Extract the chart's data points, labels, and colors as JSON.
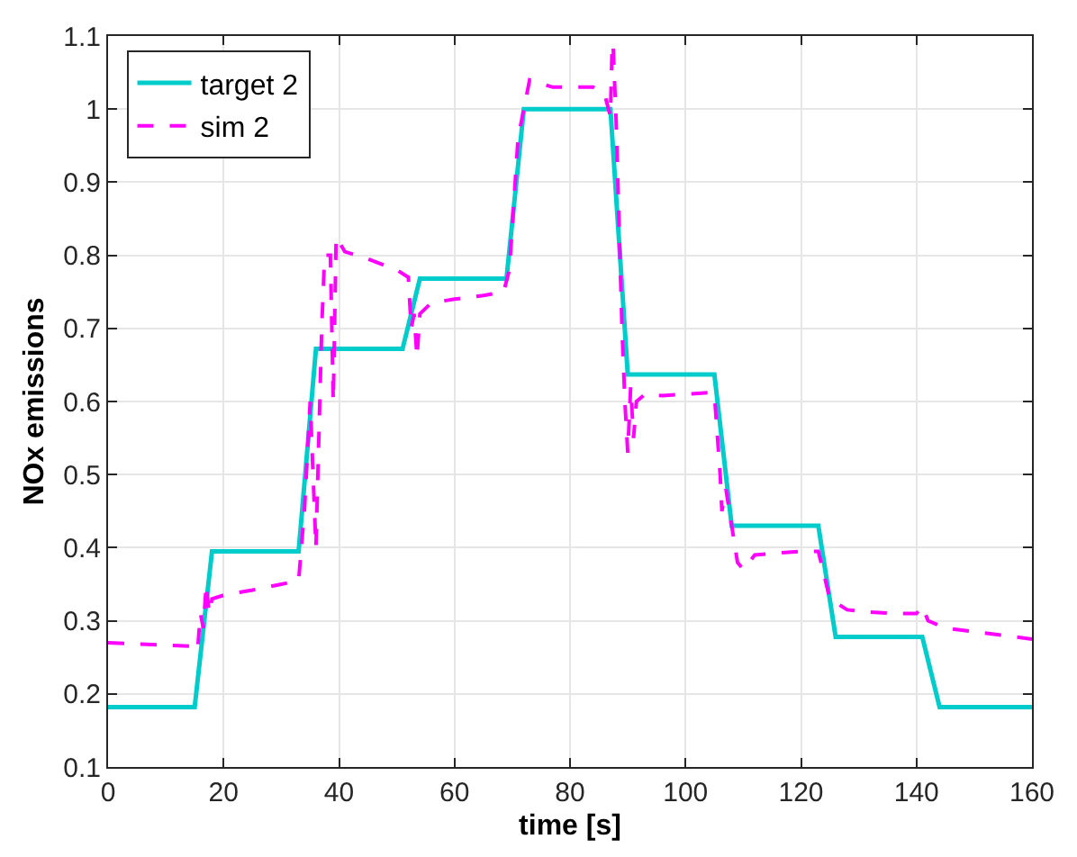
{
  "chart_data": {
    "type": "line",
    "xlabel": "time [s]",
    "ylabel": "NOx emissions",
    "xlim": [
      0,
      160
    ],
    "xticks": [
      0,
      20,
      40,
      60,
      80,
      100,
      120,
      140,
      160
    ],
    "ylim": [
      0.1,
      1.1
    ],
    "yticks": [
      0.1,
      0.2,
      0.3,
      0.4,
      0.5,
      0.6,
      0.7,
      0.8,
      0.9,
      1,
      1.1
    ],
    "grid": true,
    "legend": "top left",
    "marker": "none",
    "series": [
      {
        "name": "target 2",
        "color": "#00cccc",
        "line_style": "solid",
        "x": [
          0,
          15,
          18,
          33,
          36,
          51,
          54,
          69,
          72,
          87,
          90,
          105,
          108,
          123,
          126,
          141,
          144,
          160
        ],
        "values": [
          0.182,
          0.182,
          0.395,
          0.395,
          0.672,
          0.672,
          0.768,
          0.768,
          1.0,
          1.0,
          0.637,
          0.637,
          0.43,
          0.43,
          0.278,
          0.278,
          0.182,
          0.182
        ]
      },
      {
        "name": "sim 2",
        "color": "#ff00ff",
        "line_style": "dashed",
        "x": [
          0,
          15,
          15.5,
          16,
          16.5,
          17,
          17.5,
          18,
          20,
          25,
          30,
          33,
          34,
          35,
          36,
          36.5,
          37,
          37.5,
          38.5,
          39,
          39.5,
          41,
          45,
          50,
          52,
          52.5,
          53,
          53.5,
          54,
          56,
          60,
          65,
          68.5,
          69.5,
          70.5,
          71,
          72,
          73,
          75,
          77,
          80,
          84,
          86,
          87,
          87.3,
          87.5,
          88,
          89,
          89.5,
          90,
          90.5,
          91,
          91.5,
          93,
          96,
          100,
          104,
          105,
          106,
          106.3,
          107,
          108,
          109,
          110,
          112,
          115,
          120,
          123,
          125,
          128,
          132,
          136,
          140,
          141,
          142,
          145,
          150,
          155,
          160
        ],
        "values": [
          0.27,
          0.265,
          0.26,
          0.31,
          0.29,
          0.35,
          0.31,
          0.33,
          0.335,
          0.342,
          0.35,
          0.355,
          0.45,
          0.6,
          0.4,
          0.55,
          0.7,
          0.8,
          0.8,
          0.6,
          0.825,
          0.805,
          0.795,
          0.78,
          0.77,
          0.7,
          0.72,
          0.66,
          0.72,
          0.735,
          0.74,
          0.745,
          0.75,
          0.78,
          0.9,
          0.96,
          1.0,
          1.04,
          1.035,
          1.03,
          1.03,
          1.03,
          1.02,
          0.99,
          1.09,
          1.08,
          0.98,
          0.7,
          0.6,
          0.53,
          0.62,
          0.55,
          0.6,
          0.61,
          0.608,
          0.61,
          0.612,
          0.61,
          0.5,
          0.45,
          0.48,
          0.43,
          0.38,
          0.37,
          0.39,
          0.392,
          0.395,
          0.395,
          0.33,
          0.315,
          0.312,
          0.31,
          0.31,
          0.32,
          0.3,
          0.29,
          0.285,
          0.28,
          0.275
        ]
      }
    ]
  }
}
